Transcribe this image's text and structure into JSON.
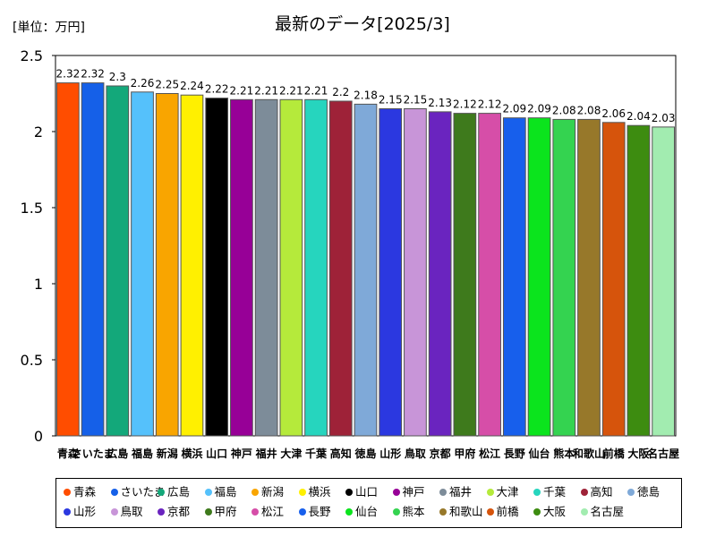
{
  "unit_label": "[単位：万円]",
  "chart_data": {
    "type": "bar",
    "title": "最新のデータ[2025/3]",
    "categories": [
      "青森",
      "さいたま",
      "広島",
      "福島",
      "新潟",
      "横浜",
      "山口",
      "神戸",
      "福井",
      "大津",
      "千葉",
      "高知",
      "徳島",
      "山形",
      "鳥取",
      "京都",
      "甲府",
      "松江",
      "長野",
      "仙台",
      "熊本",
      "和歌山",
      "前橋",
      "大阪",
      "名古屋"
    ],
    "values": [
      2.32,
      2.32,
      2.3,
      2.26,
      2.25,
      2.24,
      2.22,
      2.21,
      2.21,
      2.21,
      2.21,
      2.2,
      2.18,
      2.15,
      2.15,
      2.13,
      2.12,
      2.12,
      2.09,
      2.09,
      2.08,
      2.08,
      2.06,
      2.04,
      2.03
    ],
    "value_labels": [
      "2.32",
      "2.32",
      "2.3",
      "2.26",
      "2.25",
      "2.24",
      "2.22",
      "2.21",
      "2.21",
      "2.21",
      "2.21",
      "2.2",
      "2.18",
      "2.15",
      "2.15",
      "2.13",
      "2.12",
      "2.12",
      "2.09",
      "2.09",
      "2.08",
      "2.08",
      "2.06",
      "2.04",
      "2.03"
    ],
    "colors": [
      "#ff4d00",
      "#1560e8",
      "#13a87a",
      "#55c1fb",
      "#f9a500",
      "#fff000",
      "#000000",
      "#970097",
      "#7d8c99",
      "#b5ea3b",
      "#26d5be",
      "#9e2238",
      "#7fa9d8",
      "#2b38e0",
      "#c895d8",
      "#6a24bf",
      "#3e7a1c",
      "#d64ea8",
      "#175fec",
      "#0be41d",
      "#34d350",
      "#97782a",
      "#d6540c",
      "#3d8c10",
      "#a2ecb0"
    ],
    "yticks": [
      "0",
      "0.5",
      "1",
      "1.5",
      "2",
      "2.5"
    ],
    "ylim": [
      0,
      2.5
    ],
    "grid": false,
    "legend_position": "bottom"
  }
}
